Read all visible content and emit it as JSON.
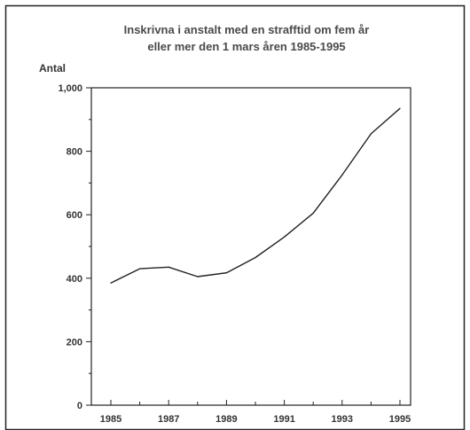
{
  "chart_data": {
    "type": "line",
    "title": "Inskrivna i anstalt med en strafftid om fem år eller mer den 1 mars åren 1985-1995",
    "title_lines": [
      "Inskrivna i anstalt med en strafftid om fem år",
      "eller mer den 1 mars åren 1985-1995"
    ],
    "xlabel": "",
    "ylabel": "Antal",
    "x": [
      1985,
      1986,
      1987,
      1988,
      1989,
      1990,
      1991,
      1992,
      1993,
      1994,
      1995
    ],
    "values": [
      385,
      430,
      435,
      405,
      417,
      465,
      530,
      605,
      725,
      855,
      935
    ],
    "xlim": [
      1985,
      1995
    ],
    "ylim": [
      0,
      1000
    ],
    "x_tick_labels": [
      "1985",
      "1987",
      "1989",
      "1991",
      "1993",
      "1995"
    ],
    "y_tick_labels": [
      "0",
      "200",
      "400",
      "600",
      "800",
      "1,000"
    ],
    "y_ticks": [
      0,
      200,
      400,
      600,
      800,
      1000
    ],
    "x_ticks": [
      1985,
      1987,
      1989,
      1991,
      1993,
      1995
    ],
    "grid": false,
    "legend": "none",
    "line_color": "#222222",
    "frame_color": "#222222"
  }
}
